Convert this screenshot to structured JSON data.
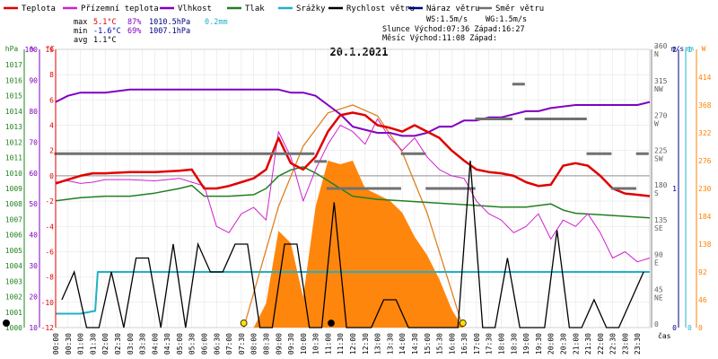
{
  "legend": [
    {
      "label": "Teplota",
      "color": "#e00000"
    },
    {
      "label": "Přízemní teplota",
      "color": "#d020d0"
    },
    {
      "label": "Vlhkost",
      "color": "#8000c0"
    },
    {
      "label": "Tlak",
      "color": "#208020"
    },
    {
      "label": "Srážky",
      "color": "#20b0c8"
    },
    {
      "label": "Rychlost větru",
      "color": "#000000"
    },
    {
      "label": "Náraz větru",
      "color": "#000080"
    },
    {
      "label": "Směr větru",
      "color": "#707070"
    }
  ],
  "stats": {
    "max_label": "max",
    "max_temp": "5.1°C",
    "max_hum": "87%",
    "max_press": "1010.5hPa",
    "max_rain": "0.2mm",
    "min_label": "min",
    "min_temp": "-1.6°C",
    "min_hum": "69%",
    "min_press": "1007.1hPa",
    "avg_label": "avg",
    "avg_temp": "1.1°C",
    "ws": "WS:1.5m/s",
    "wg": "WG:1.5m/s",
    "sun": "Slunce Východ:07:36  Západ:16:27",
    "moon": "Měsíc  Východ:11:08  Západ:"
  },
  "chart_data": {
    "type": "line",
    "title": "20.1.2021",
    "xlabel": "čas",
    "x_ticks": [
      "00:00",
      "00:30",
      "01:00",
      "01:30",
      "02:00",
      "02:30",
      "03:00",
      "03:30",
      "04:00",
      "04:30",
      "05:00",
      "05:30",
      "06:00",
      "06:30",
      "07:00",
      "07:30",
      "08:00",
      "08:30",
      "09:00",
      "09:30",
      "10:00",
      "10:30",
      "11:00",
      "11:30",
      "12:00",
      "12:30",
      "13:00",
      "13:30",
      "14:00",
      "14:30",
      "15:00",
      "15:30",
      "16:00",
      "16:30",
      "17:00",
      "17:30",
      "18:00",
      "18:30",
      "19:00",
      "19:30",
      "20:00",
      "20:30",
      "21:00",
      "21:30",
      "22:00",
      "22:30",
      "23:00",
      "23:30"
    ],
    "axes": {
      "hpa": {
        "label": "hPa",
        "ticks": [
          "1000",
          "1001",
          "1002",
          "1003",
          "1004",
          "1005",
          "1006",
          "1007",
          "1008",
          "1009",
          "1010",
          "1011",
          "1012",
          "1013",
          "1014",
          "1015",
          "1016",
          "1017"
        ],
        "range": [
          1000,
          1018
        ]
      },
      "pct": {
        "label": "%",
        "ticks": [
          "10",
          "20",
          "30",
          "40",
          "50",
          "60",
          "70",
          "80",
          "90",
          "100"
        ],
        "range": [
          10,
          100
        ]
      },
      "temp": {
        "label": "°C",
        "ticks": [
          "-12",
          "-10",
          "-8",
          "-6",
          "-4",
          "-2",
          "0",
          "2",
          "4",
          "6",
          "8",
          "10"
        ],
        "range": [
          -12,
          10
        ]
      },
      "dir": {
        "label": "°",
        "ticks": [
          {
            "deg": "0",
            "dir": ""
          },
          {
            "deg": "45",
            "dir": "NE"
          },
          {
            "deg": "90",
            "dir": "E"
          },
          {
            "deg": "135",
            "dir": "SE"
          },
          {
            "deg": "180",
            "dir": "S"
          },
          {
            "deg": "225",
            "dir": "SW"
          },
          {
            "deg": "270",
            "dir": "W"
          },
          {
            "deg": "315",
            "dir": "NW"
          },
          {
            "deg": "360",
            "dir": "N"
          }
        ],
        "range": [
          0,
          360
        ]
      },
      "wind": {
        "label": "m/s",
        "ticks": [
          "0",
          "1",
          "2"
        ],
        "range": [
          0,
          2
        ]
      },
      "mm": {
        "label": "mm",
        "ticks": [
          "0",
          "1"
        ],
        "range": [
          0,
          1
        ]
      },
      "solar": {
        "label": "W",
        "ticks": [
          "0",
          "46",
          "92",
          "138",
          "184",
          "230",
          "276",
          "322",
          "368",
          "414"
        ],
        "range": [
          0,
          460
        ]
      }
    },
    "series": [
      {
        "name": "Teplota",
        "color": "#e00000",
        "width": 2.5,
        "points": [
          [
            0,
            -0.6
          ],
          [
            0.5,
            -0.3
          ],
          [
            1,
            0.0
          ],
          [
            1.5,
            0.2
          ],
          [
            2,
            0.2
          ],
          [
            3,
            0.3
          ],
          [
            4,
            0.3
          ],
          [
            5,
            0.4
          ],
          [
            5.5,
            0.5
          ],
          [
            6,
            -1.0
          ],
          [
            6.5,
            -1.0
          ],
          [
            7,
            -0.8
          ],
          [
            7.5,
            -0.5
          ],
          [
            8,
            -0.2
          ],
          [
            8.5,
            0.5
          ],
          [
            9,
            3.0
          ],
          [
            9.5,
            1.0
          ],
          [
            10,
            0.5
          ],
          [
            10.5,
            1.5
          ],
          [
            11,
            3.5
          ],
          [
            11.5,
            4.8
          ],
          [
            12,
            5.0
          ],
          [
            12.5,
            4.8
          ],
          [
            13,
            4.0
          ],
          [
            13.5,
            3.8
          ],
          [
            14,
            3.5
          ],
          [
            14.5,
            4.0
          ],
          [
            15,
            3.5
          ],
          [
            15.5,
            3.0
          ],
          [
            16,
            2.0
          ],
          [
            16.5,
            1.2
          ],
          [
            17,
            0.5
          ],
          [
            17.5,
            0.3
          ],
          [
            18,
            0.2
          ],
          [
            18.5,
            0.0
          ],
          [
            19,
            -0.5
          ],
          [
            19.5,
            -0.8
          ],
          [
            20,
            -0.7
          ],
          [
            20.5,
            0.8
          ],
          [
            21,
            1.0
          ],
          [
            21.5,
            0.8
          ],
          [
            22,
            0.0
          ],
          [
            22.5,
            -1.0
          ],
          [
            23,
            -1.4
          ],
          [
            23.5,
            -1.5
          ],
          [
            24,
            -1.6
          ]
        ]
      },
      {
        "name": "Přízemní teplota",
        "color": "#d020d0",
        "width": 1,
        "points": [
          [
            0,
            -0.5
          ],
          [
            0.5,
            -0.4
          ],
          [
            1,
            -0.6
          ],
          [
            1.5,
            -0.5
          ],
          [
            2,
            -0.3
          ],
          [
            3,
            -0.3
          ],
          [
            4,
            -0.4
          ],
          [
            5,
            -0.2
          ],
          [
            5.5,
            -0.5
          ],
          [
            6,
            -0.8
          ],
          [
            6.5,
            -4.0
          ],
          [
            7,
            -4.5
          ],
          [
            7.5,
            -3.0
          ],
          [
            8,
            -2.5
          ],
          [
            8.5,
            -3.5
          ],
          [
            9,
            3.5
          ],
          [
            9.5,
            1.5
          ],
          [
            10,
            -2.0
          ],
          [
            10.5,
            0.5
          ],
          [
            11,
            2.5
          ],
          [
            11.5,
            4.0
          ],
          [
            12,
            3.5
          ],
          [
            12.5,
            2.5
          ],
          [
            13,
            4.5
          ],
          [
            13.5,
            3.0
          ],
          [
            14,
            2.0
          ],
          [
            14.5,
            3.0
          ],
          [
            15,
            1.5
          ],
          [
            15.5,
            0.5
          ],
          [
            16,
            0.0
          ],
          [
            16.5,
            -0.2
          ],
          [
            17,
            -2.0
          ],
          [
            17.5,
            -3.0
          ],
          [
            18,
            -3.5
          ],
          [
            18.5,
            -4.5
          ],
          [
            19,
            -4.0
          ],
          [
            19.5,
            -3.0
          ],
          [
            20,
            -5.0
          ],
          [
            20.5,
            -3.5
          ],
          [
            21,
            -4.0
          ],
          [
            21.5,
            -3.0
          ],
          [
            22,
            -4.5
          ],
          [
            22.5,
            -6.5
          ],
          [
            23,
            -6.0
          ],
          [
            23.5,
            -6.8
          ],
          [
            24,
            -6.5
          ]
        ]
      },
      {
        "name": "Vlhkost",
        "color": "#8000c0",
        "width": 2,
        "points": [
          [
            0,
            83
          ],
          [
            0.5,
            85
          ],
          [
            1,
            86
          ],
          [
            2,
            86
          ],
          [
            3,
            87
          ],
          [
            4,
            87
          ],
          [
            5,
            87
          ],
          [
            6,
            87
          ],
          [
            7,
            87
          ],
          [
            8,
            87
          ],
          [
            9,
            87
          ],
          [
            9.5,
            86
          ],
          [
            10,
            86
          ],
          [
            10.5,
            85
          ],
          [
            11,
            82
          ],
          [
            11.5,
            79
          ],
          [
            12,
            75
          ],
          [
            12.5,
            74
          ],
          [
            13,
            73
          ],
          [
            13.5,
            73
          ],
          [
            14,
            72
          ],
          [
            14.5,
            72
          ],
          [
            15,
            73
          ],
          [
            15.5,
            75
          ],
          [
            16,
            75
          ],
          [
            16.5,
            77
          ],
          [
            17,
            77
          ],
          [
            17.5,
            78
          ],
          [
            18,
            78
          ],
          [
            18.5,
            79
          ],
          [
            19,
            80
          ],
          [
            19.5,
            80
          ],
          [
            20,
            81
          ],
          [
            21,
            82
          ],
          [
            22,
            82
          ],
          [
            23,
            82
          ],
          [
            23.5,
            82
          ],
          [
            24,
            83
          ]
        ]
      },
      {
        "name": "Tlak",
        "color": "#208020",
        "width": 1.5,
        "points": [
          [
            0,
            1008.2
          ],
          [
            1,
            1008.4
          ],
          [
            2,
            1008.5
          ],
          [
            3,
            1008.5
          ],
          [
            4,
            1008.7
          ],
          [
            5,
            1009.0
          ],
          [
            5.5,
            1009.2
          ],
          [
            6,
            1008.5
          ],
          [
            7,
            1008.5
          ],
          [
            8,
            1008.6
          ],
          [
            8.5,
            1009.0
          ],
          [
            9,
            1009.8
          ],
          [
            9.5,
            1010.2
          ],
          [
            10,
            1010.4
          ],
          [
            10.5,
            1010.0
          ],
          [
            11,
            1009.5
          ],
          [
            11.5,
            1009.0
          ],
          [
            12,
            1008.5
          ],
          [
            13,
            1008.3
          ],
          [
            14,
            1008.2
          ],
          [
            15,
            1008.1
          ],
          [
            16,
            1008.0
          ],
          [
            17,
            1007.9
          ],
          [
            18,
            1007.8
          ],
          [
            19,
            1007.8
          ],
          [
            20,
            1008.0
          ],
          [
            20.5,
            1007.6
          ],
          [
            21,
            1007.4
          ],
          [
            22,
            1007.3
          ],
          [
            23,
            1007.2
          ],
          [
            24,
            1007.1
          ]
        ]
      },
      {
        "name": "Srážky",
        "color": "#20b0c8",
        "width": 2,
        "points": [
          [
            0,
            0.05
          ],
          [
            1,
            0.05
          ],
          [
            1.6,
            0.06
          ],
          [
            1.7,
            0.2
          ],
          [
            24,
            0.2
          ]
        ],
        "axis": "mm"
      }
    ],
    "wind_speed": {
      "name": "Rychlost větru",
      "color": "#000000",
      "values_per_half_hour": [
        0.2,
        0.4,
        0.0,
        0.0,
        0.4,
        0.0,
        0.5,
        0.5,
        0.0,
        0.6,
        0.0,
        0.6,
        0.4,
        0.4,
        0.6,
        0.6,
        0.0,
        0.0,
        0.6,
        0.6,
        0.0,
        0.0,
        0.9,
        0.0,
        0.0,
        0.0,
        0.2,
        0.2,
        0.0,
        0.0,
        0.0,
        0.0,
        0.0,
        1.2,
        0.0,
        0.0,
        0.5,
        0.0,
        0.0,
        0.0,
        0.7,
        0.0,
        0.0,
        0.2,
        0.0,
        0.0,
        0.2,
        0.4
      ]
    },
    "wind_direction_deg": [
      225,
      225,
      225,
      225,
      225,
      225,
      225,
      225,
      225,
      225,
      225,
      225,
      225,
      225,
      225,
      225,
      225,
      225,
      225,
      225,
      225,
      215,
      180,
      180,
      180,
      180,
      180,
      180,
      225,
      225,
      180,
      180,
      180,
      180,
      270,
      270,
      270,
      315,
      270,
      270,
      270,
      270,
      270,
      225,
      225,
      180,
      180,
      225
    ],
    "solar_radiation_w": [
      [
        7.6,
        0
      ],
      [
        8,
        0
      ],
      [
        8.5,
        40
      ],
      [
        9,
        160
      ],
      [
        9.5,
        140
      ],
      [
        10,
        50
      ],
      [
        10.5,
        200
      ],
      [
        11,
        276
      ],
      [
        11.5,
        270
      ],
      [
        12,
        276
      ],
      [
        12.5,
        230
      ],
      [
        13,
        220
      ],
      [
        13.5,
        210
      ],
      [
        14,
        190
      ],
      [
        14.5,
        150
      ],
      [
        15,
        120
      ],
      [
        15.5,
        80
      ],
      [
        16,
        30
      ],
      [
        16.45,
        0
      ]
    ],
    "solar_theoretical_w": [
      [
        7.6,
        0
      ],
      [
        9,
        200
      ],
      [
        10,
        300
      ],
      [
        11,
        355
      ],
      [
        12,
        368
      ],
      [
        13,
        350
      ],
      [
        14,
        290
      ],
      [
        15,
        190
      ],
      [
        16,
        60
      ],
      [
        16.45,
        0
      ]
    ],
    "sunrise_h": 7.6,
    "sunset_h": 16.45,
    "moonrise_h": 11.13
  }
}
